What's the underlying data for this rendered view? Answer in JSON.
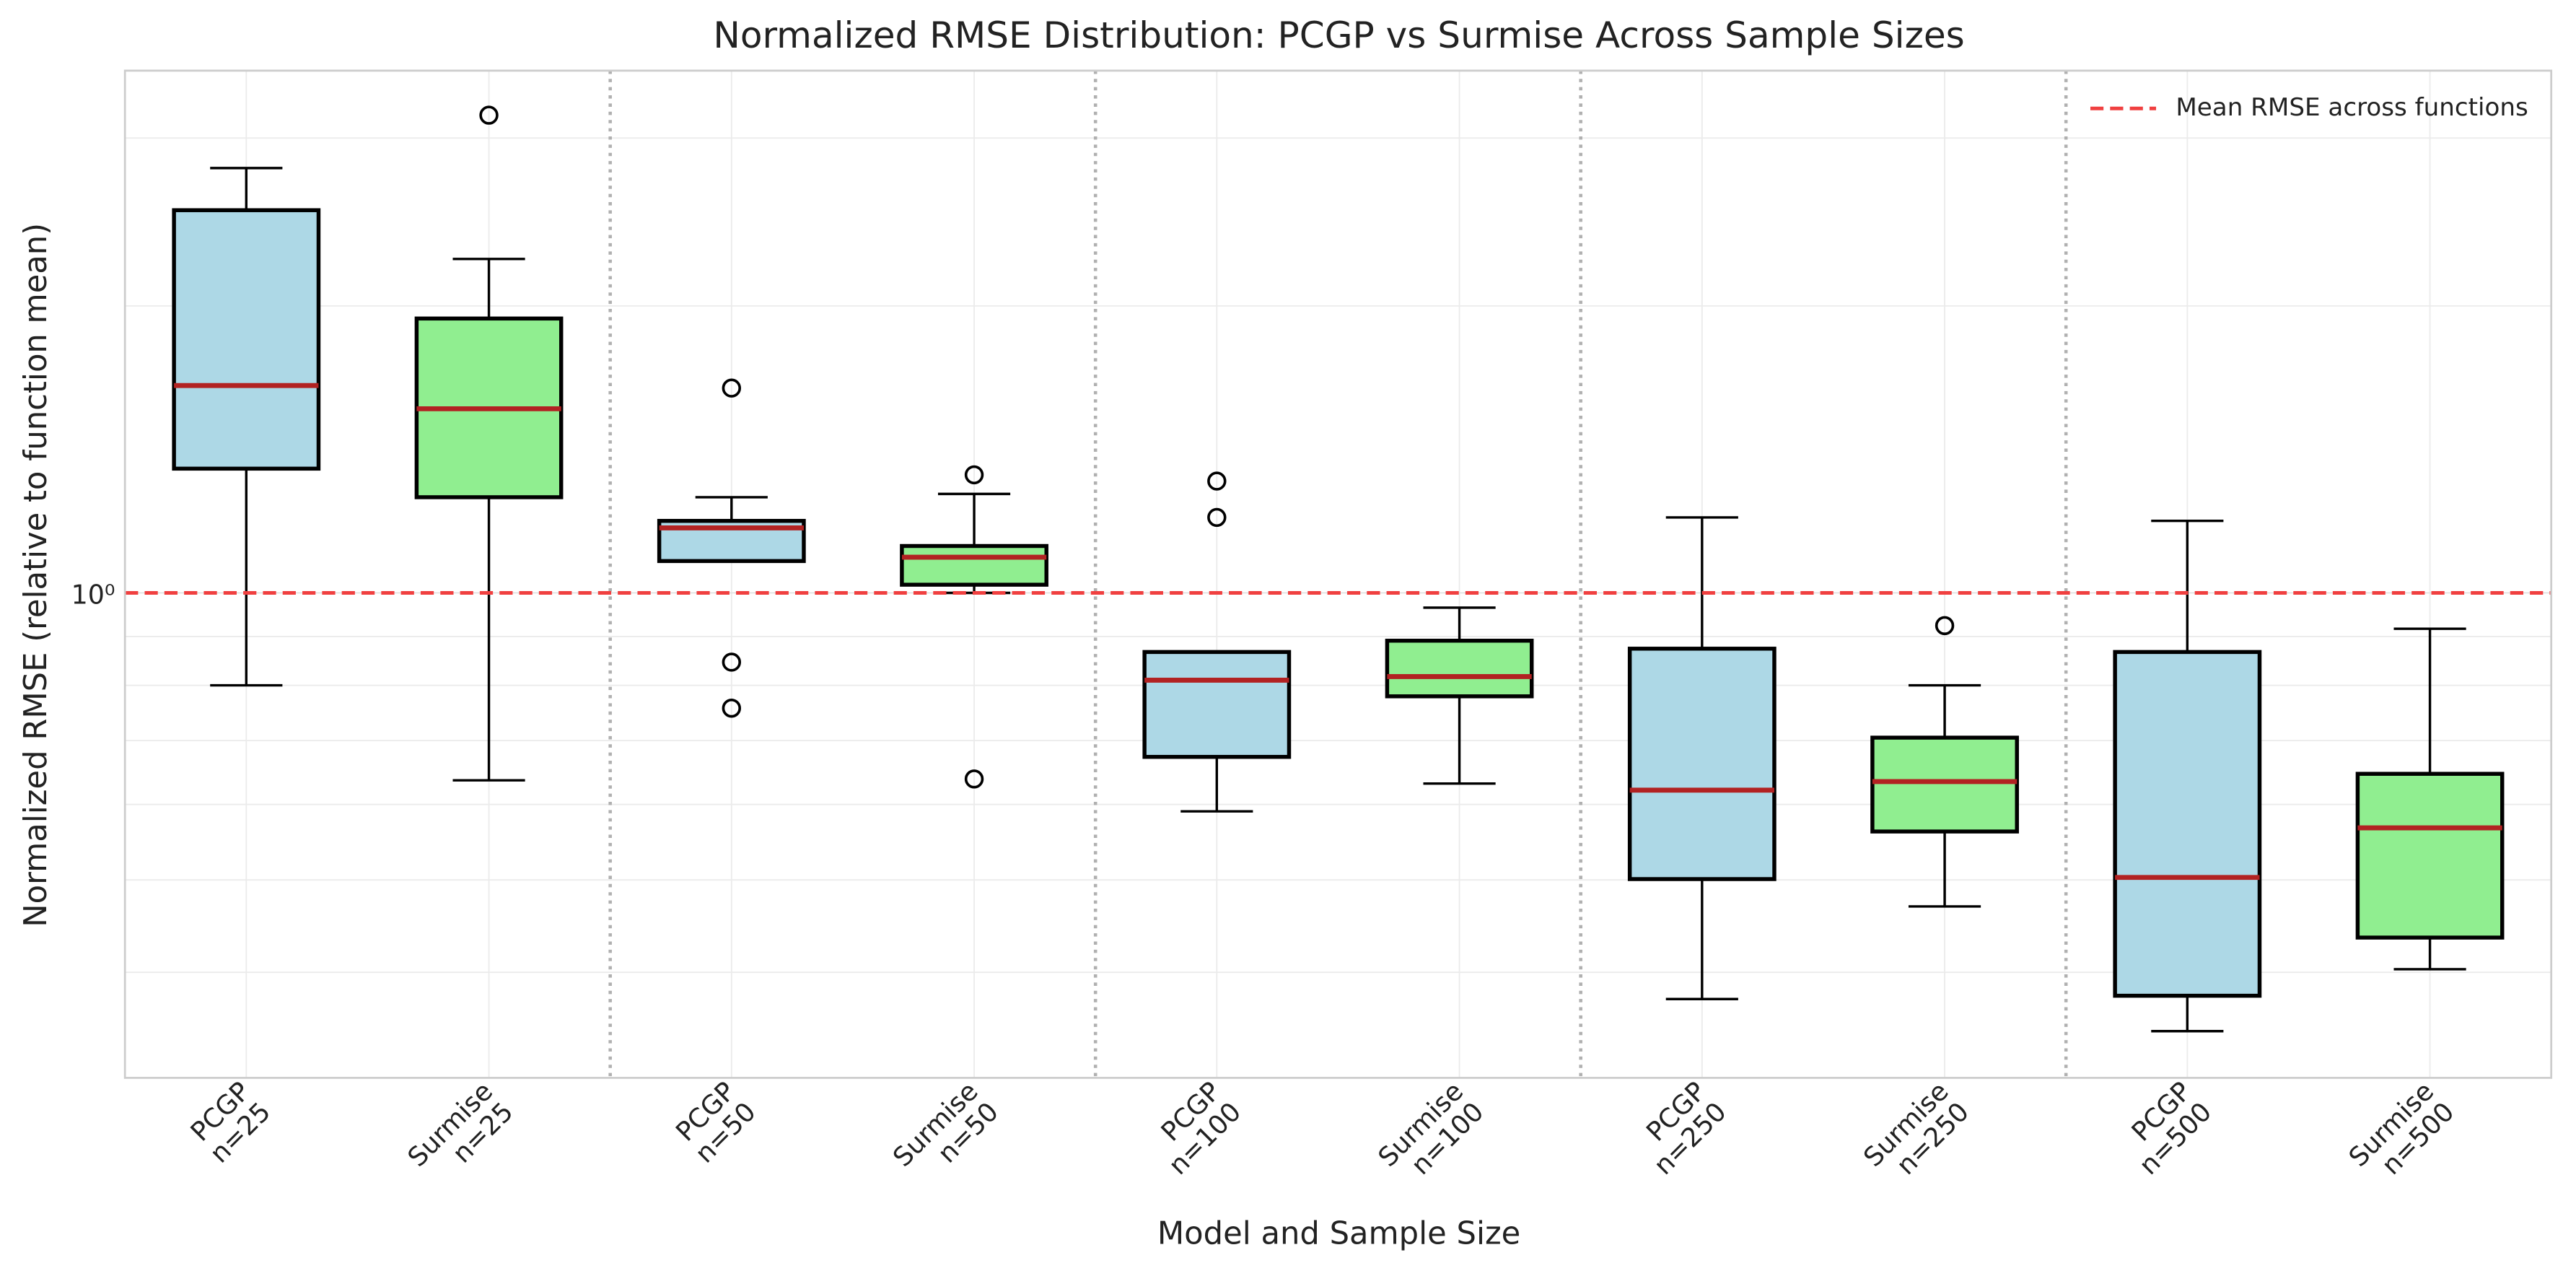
{
  "chart_data": {
    "type": "box",
    "title": "Normalized RMSE Distribution: PCGP vs Surmise Across Sample Sizes",
    "x_label": "Model and Sample Size",
    "y_label": "Normalized RMSE (relative to function mean)",
    "y_scale": "log",
    "ylim": [
      0.31,
      3.53
    ],
    "yticks": [
      {
        "value": 1,
        "label": "10⁰"
      }
    ],
    "yminorticks": [
      0.4,
      0.5,
      0.6,
      0.7,
      0.8,
      0.9,
      2,
      3
    ],
    "grid": true,
    "median_color": "#b22222",
    "categories": [
      [
        "PCGP",
        "n=25"
      ],
      [
        "Surmise",
        "n=25"
      ],
      [
        "PCGP",
        "n=50"
      ],
      [
        "Surmise",
        "n=50"
      ],
      [
        "PCGP",
        "n=100"
      ],
      [
        "Surmise",
        "n=100"
      ],
      [
        "PCGP",
        "n=250"
      ],
      [
        "Surmise",
        "n=250"
      ],
      [
        "PCGP",
        "n=500"
      ],
      [
        "Surmise",
        "n=500"
      ]
    ],
    "boxes": [
      {
        "color": "#add8e6",
        "whislo": 0.8,
        "q1": 1.35,
        "med": 1.65,
        "q3": 2.52,
        "whishi": 2.79,
        "fliers": []
      },
      {
        "color": "#90ee90",
        "whislo": 0.636,
        "q1": 1.26,
        "med": 1.56,
        "q3": 1.94,
        "whishi": 2.24,
        "fliers": [
          3.17
        ]
      },
      {
        "color": "#add8e6",
        "whislo": 1.08,
        "q1": 1.08,
        "med": 1.17,
        "q3": 1.19,
        "whishi": 1.26,
        "fliers": [
          1.64,
          0.846,
          0.757
        ]
      },
      {
        "color": "#90ee90",
        "whislo": 1.0,
        "q1": 1.02,
        "med": 1.09,
        "q3": 1.12,
        "whishi": 1.27,
        "fliers": [
          1.33,
          0.638
        ]
      },
      {
        "color": "#add8e6",
        "whislo": 0.59,
        "q1": 0.673,
        "med": 0.81,
        "q3": 0.867,
        "whishi": 0.867,
        "fliers": [
          1.31,
          1.2
        ]
      },
      {
        "color": "#90ee90",
        "whislo": 0.631,
        "q1": 0.779,
        "med": 0.817,
        "q3": 0.891,
        "whishi": 0.965,
        "fliers": []
      },
      {
        "color": "#add8e6",
        "whislo": 0.375,
        "q1": 0.501,
        "med": 0.621,
        "q3": 0.874,
        "whishi": 1.2,
        "fliers": []
      },
      {
        "color": "#90ee90",
        "whislo": 0.469,
        "q1": 0.562,
        "med": 0.634,
        "q3": 0.705,
        "whishi": 0.8,
        "fliers": [
          0.924
        ]
      },
      {
        "color": "#add8e6",
        "whislo": 0.347,
        "q1": 0.378,
        "med": 0.503,
        "q3": 0.867,
        "whishi": 1.19,
        "fliers": []
      },
      {
        "color": "#90ee90",
        "whislo": 0.403,
        "q1": 0.435,
        "med": 0.567,
        "q3": 0.646,
        "whishi": 0.917,
        "fliers": []
      }
    ],
    "reference_line": {
      "value": 1,
      "label": "Mean RMSE across functions",
      "color": "#f04040"
    },
    "legend_position": "upper right"
  }
}
